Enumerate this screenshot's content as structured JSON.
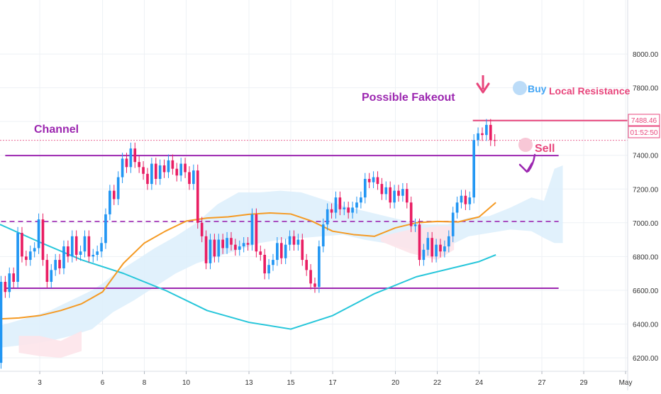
{
  "chart_data": {
    "type": "candlestick",
    "instrument": "BTC/USD",
    "y_axis": {
      "ticks": [
        "8000.00",
        "7800.00",
        "7600.00",
        "7400.00",
        "7200.00",
        "7000.00",
        "6800.00",
        "6600.00",
        "6400.00",
        "6200.00"
      ],
      "ylim": [
        6120,
        8320
      ]
    },
    "x_axis": {
      "ticks": [
        "3",
        "6",
        "8",
        "10",
        "13",
        "15",
        "17",
        "20",
        "22",
        "24",
        "27",
        "29",
        "May"
      ],
      "tick_values": [
        2.5,
        5.5,
        7.5,
        9.5,
        12.5,
        14.5,
        16.5,
        19.5,
        21.5,
        23.5,
        26.5,
        28.5,
        30.5
      ],
      "xlim": [
        0.6,
        30.6
      ]
    },
    "price_labels": {
      "last_price": "7488.46",
      "countdown": "01:52:50"
    },
    "colors": {
      "up": "#2196f3",
      "down": "#e91e63",
      "ema_fast": "#f59a23",
      "ema_slow": "#26c6da",
      "channel": "#9c27b0",
      "resistance": "#e8467c",
      "cloud": "#dceefc",
      "cloud_bear": "#fde4ea"
    },
    "annotations": {
      "channel_label": "Channel",
      "fakeout_label": "Possible Fakeout",
      "buy_label": "Buy",
      "sell_label": "Sell",
      "resistance_label": "Local Resistance"
    },
    "levels": {
      "channel_top": 7398,
      "channel_mid": 7008,
      "channel_bottom": 6612,
      "local_resistance": 7606,
      "last_price": 7488.46
    },
    "candles": [
      [
        0.65,
        6170,
        6650
      ],
      [
        0.85,
        6650,
        6590
      ],
      [
        1.05,
        6590,
        6700
      ],
      [
        1.25,
        6700,
        6650
      ],
      [
        1.45,
        6650,
        6940
      ],
      [
        1.65,
        6940,
        6800
      ],
      [
        1.85,
        6800,
        6780
      ],
      [
        2.05,
        6780,
        6830
      ],
      [
        2.25,
        6830,
        6850
      ],
      [
        2.45,
        6850,
        7020
      ],
      [
        2.65,
        7020,
        6780
      ],
      [
        2.85,
        6780,
        6650
      ],
      [
        3.05,
        6650,
        6720
      ],
      [
        3.25,
        6720,
        6780
      ],
      [
        3.45,
        6780,
        6730
      ],
      [
        3.65,
        6730,
        6860
      ],
      [
        3.85,
        6860,
        6800
      ],
      [
        4.05,
        6800,
        6920
      ],
      [
        4.25,
        6920,
        6810
      ],
      [
        4.45,
        6810,
        6830
      ],
      [
        4.65,
        6830,
        6920
      ],
      [
        4.85,
        6920,
        6800
      ],
      [
        5.05,
        6800,
        6810
      ],
      [
        5.25,
        6810,
        6830
      ],
      [
        5.45,
        6830,
        6880
      ],
      [
        5.65,
        6880,
        7050
      ],
      [
        5.85,
        7050,
        7190
      ],
      [
        6.05,
        7190,
        7140
      ],
      [
        6.25,
        7140,
        7270
      ],
      [
        6.45,
        7270,
        7380
      ],
      [
        6.65,
        7380,
        7330
      ],
      [
        6.85,
        7330,
        7440
      ],
      [
        7.05,
        7440,
        7360
      ],
      [
        7.25,
        7360,
        7330
      ],
      [
        7.45,
        7330,
        7290
      ],
      [
        7.65,
        7290,
        7230
      ],
      [
        7.85,
        7230,
        7350
      ],
      [
        8.05,
        7350,
        7260
      ],
      [
        8.25,
        7260,
        7340
      ],
      [
        8.45,
        7340,
        7300
      ],
      [
        8.65,
        7300,
        7370
      ],
      [
        8.85,
        7370,
        7320
      ],
      [
        9.05,
        7320,
        7280
      ],
      [
        9.25,
        7280,
        7350
      ],
      [
        9.45,
        7350,
        7300
      ],
      [
        9.65,
        7300,
        7230
      ],
      [
        9.85,
        7230,
        7310
      ],
      [
        10.05,
        7310,
        7000
      ],
      [
        10.25,
        7000,
        6920
      ],
      [
        10.45,
        6920,
        6760
      ],
      [
        10.65,
        6760,
        6900
      ],
      [
        10.85,
        6900,
        6800
      ],
      [
        11.05,
        6800,
        6900
      ],
      [
        11.25,
        6900,
        6850
      ],
      [
        11.45,
        6850,
        6910
      ],
      [
        11.65,
        6910,
        6870
      ],
      [
        11.85,
        6870,
        6840
      ],
      [
        12.05,
        6840,
        6860
      ],
      [
        12.25,
        6860,
        6880
      ],
      [
        12.45,
        6880,
        6870
      ],
      [
        12.65,
        6870,
        7050
      ],
      [
        12.85,
        7050,
        6830
      ],
      [
        13.05,
        6830,
        6810
      ],
      [
        13.25,
        6810,
        6700
      ],
      [
        13.45,
        6700,
        6750
      ],
      [
        13.65,
        6750,
        6780
      ],
      [
        13.85,
        6780,
        6880
      ],
      [
        14.05,
        6880,
        6790
      ],
      [
        14.25,
        6790,
        6870
      ],
      [
        14.45,
        6870,
        6920
      ],
      [
        14.65,
        6920,
        6870
      ],
      [
        14.85,
        6870,
        6900
      ],
      [
        15.05,
        6900,
        6780
      ],
      [
        15.25,
        6780,
        6720
      ],
      [
        15.45,
        6720,
        6640
      ],
      [
        15.65,
        6640,
        6620
      ],
      [
        15.85,
        6620,
        6860
      ],
      [
        16.05,
        6860,
        6990
      ],
      [
        16.25,
        6990,
        7080
      ],
      [
        16.45,
        7080,
        7060
      ],
      [
        16.65,
        7060,
        7150
      ],
      [
        16.85,
        7150,
        7080
      ],
      [
        17.05,
        7080,
        7090
      ],
      [
        17.25,
        7090,
        7060
      ],
      [
        17.45,
        7060,
        7090
      ],
      [
        17.65,
        7090,
        7120
      ],
      [
        17.85,
        7120,
        7150
      ],
      [
        18.05,
        7150,
        7260
      ],
      [
        18.25,
        7260,
        7240
      ],
      [
        18.45,
        7240,
        7270
      ],
      [
        18.65,
        7270,
        7230
      ],
      [
        18.85,
        7230,
        7170
      ],
      [
        19.05,
        7170,
        7210
      ],
      [
        19.25,
        7210,
        7120
      ],
      [
        19.45,
        7120,
        7190
      ],
      [
        19.65,
        7190,
        7160
      ],
      [
        19.85,
        7160,
        7200
      ],
      [
        20.05,
        7200,
        7120
      ],
      [
        20.25,
        7120,
        6980
      ],
      [
        20.45,
        6980,
        6990
      ],
      [
        20.65,
        6990,
        6780
      ],
      [
        20.85,
        6780,
        6840
      ],
      [
        21.05,
        6840,
        6910
      ],
      [
        21.25,
        6910,
        6800
      ],
      [
        21.45,
        6800,
        6870
      ],
      [
        21.65,
        6870,
        6830
      ],
      [
        21.85,
        6830,
        6860
      ],
      [
        22.05,
        6860,
        6920
      ],
      [
        22.25,
        6920,
        7060
      ],
      [
        22.45,
        7060,
        7120
      ],
      [
        22.65,
        7120,
        7160
      ],
      [
        22.85,
        7160,
        7110
      ],
      [
        23.05,
        7110,
        7150
      ],
      [
        23.25,
        7150,
        7490
      ],
      [
        23.45,
        7490,
        7530
      ],
      [
        23.65,
        7530,
        7520
      ],
      [
        23.85,
        7520,
        7580
      ],
      [
        24.05,
        7580,
        7490
      ],
      [
        24.25,
        7490,
        7488.46
      ]
    ],
    "ema_fast": {
      "x": [
        0.6,
        1.5,
        2.5,
        3.5,
        4.5,
        5.5,
        6.5,
        7.5,
        8.5,
        9.5,
        10.5,
        11.5,
        12.5,
        13.5,
        14.5,
        15.5,
        16.5,
        17.5,
        18.5,
        19.5,
        20.5,
        21.5,
        22.5,
        23.5,
        24.3
      ],
      "y": [
        6430,
        6436,
        6450,
        6480,
        6520,
        6590,
        6760,
        6880,
        6950,
        7010,
        7028,
        7035,
        7050,
        7058,
        7052,
        7010,
        6950,
        6930,
        6920,
        6970,
        7000,
        7008,
        7005,
        7035,
        7120
      ]
    },
    "ema_slow": {
      "x": [
        0.6,
        2.5,
        4.5,
        6.5,
        8.5,
        10.5,
        12.5,
        14.5,
        16.5,
        18.5,
        20.5,
        22.5,
        23.5,
        24.3
      ],
      "y": [
        6990,
        6885,
        6780,
        6700,
        6600,
        6480,
        6410,
        6370,
        6450,
        6580,
        6680,
        6740,
        6770,
        6810
      ]
    },
    "cloud": {
      "x": [
        0.6,
        2,
        3,
        4,
        5,
        5.5,
        6,
        7,
        8,
        9,
        10,
        11,
        12,
        13,
        14,
        15,
        16,
        17,
        18,
        19,
        20,
        21,
        22,
        23,
        24,
        25,
        26,
        26.6,
        27.1,
        27.5
      ],
      "top": [
        6390,
        6440,
        6480,
        6540,
        6600,
        6640,
        6690,
        6770,
        6850,
        6920,
        7000,
        7110,
        7180,
        7180,
        7190,
        7180,
        7140,
        7100,
        7070,
        7040,
        7010,
        6990,
        6990,
        7030,
        7040,
        7090,
        7150,
        7130,
        7320,
        7340
      ],
      "bot": [
        6260,
        6280,
        6300,
        6330,
        6370,
        6420,
        6470,
        6540,
        6620,
        6700,
        6760,
        6800,
        6840,
        6880,
        6900,
        6910,
        6920,
        6930,
        6900,
        6880,
        6850,
        6820,
        6860,
        6920,
        6940,
        6960,
        6950,
        6910,
        6880,
        6880
      ]
    }
  }
}
